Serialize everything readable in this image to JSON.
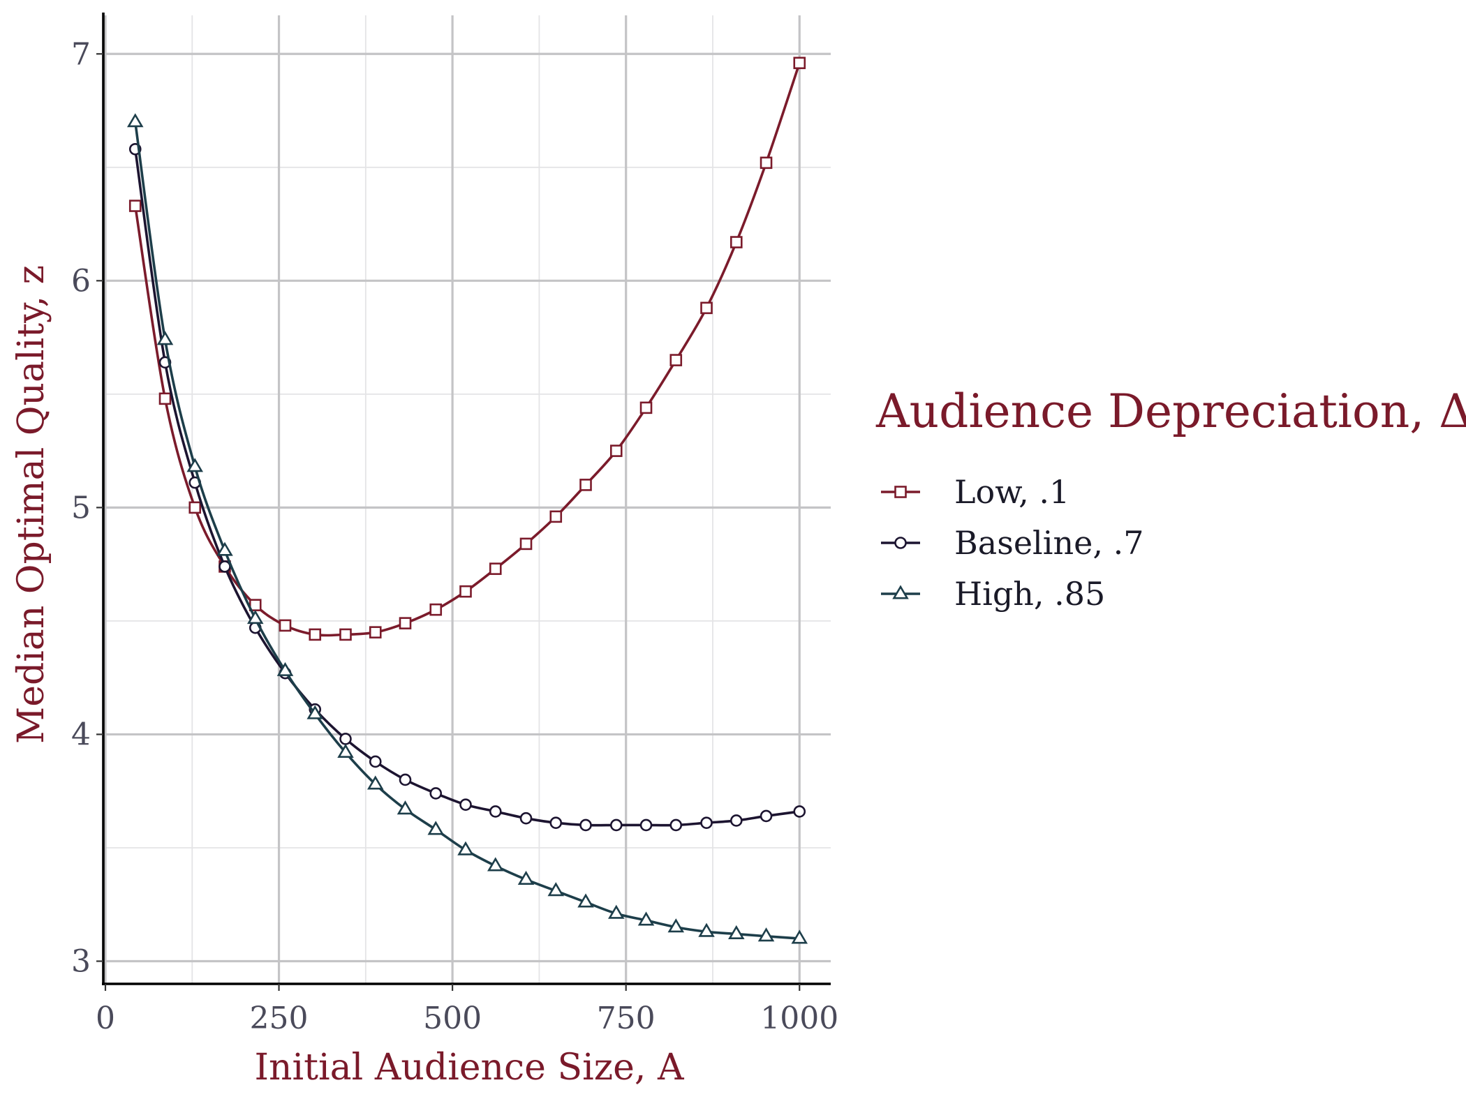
{
  "chart_data": {
    "type": "line",
    "title": "",
    "xlabel": "Initial Audience Size, A",
    "ylabel": "Median Optimal Quality, z",
    "xlim": [
      -3,
      1045
    ],
    "ylim": [
      2.9,
      7.17
    ],
    "x_major_ticks": [
      0,
      250,
      500,
      750,
      1000
    ],
    "x_tick_labels": [
      "0",
      "250",
      "500",
      "750",
      "1000"
    ],
    "x_minor_ticks": [
      125,
      375,
      625,
      875
    ],
    "y_major_ticks": [
      3,
      4,
      5,
      6,
      7
    ],
    "y_tick_labels": [
      "3",
      "4",
      "5",
      "6",
      "7"
    ],
    "y_minor_ticks": [
      3.5,
      4.5,
      5.5,
      6.5
    ],
    "grid": true,
    "legend_title": "Audience Depreciation, Δ",
    "legend_position": "right",
    "series": [
      {
        "name": "Low, .1",
        "color": "#7b1b2b",
        "marker": "square",
        "x": [
          43,
          86,
          129,
          172,
          216,
          259,
          302,
          346,
          389,
          432,
          476,
          519,
          562,
          606,
          649,
          692,
          736,
          779,
          822,
          866,
          909,
          952,
          1000
        ],
        "y": [
          6.33,
          5.48,
          5.0,
          4.74,
          4.57,
          4.48,
          4.44,
          4.44,
          4.45,
          4.49,
          4.55,
          4.63,
          4.73,
          4.84,
          4.96,
          5.1,
          5.25,
          5.44,
          5.65,
          5.88,
          6.17,
          6.52,
          6.96
        ]
      },
      {
        "name": "Baseline, .7",
        "color": "#1c1430",
        "marker": "circle",
        "x": [
          43,
          86,
          129,
          172,
          216,
          259,
          302,
          346,
          389,
          432,
          476,
          519,
          562,
          606,
          649,
          692,
          736,
          779,
          822,
          866,
          909,
          952,
          1000
        ],
        "y": [
          6.58,
          5.64,
          5.11,
          4.74,
          4.47,
          4.27,
          4.11,
          3.98,
          3.88,
          3.8,
          3.74,
          3.69,
          3.66,
          3.63,
          3.61,
          3.6,
          3.6,
          3.6,
          3.6,
          3.61,
          3.62,
          3.64,
          3.66
        ]
      },
      {
        "name": "High, .85",
        "color": "#1d3e4a",
        "marker": "triangle",
        "x": [
          43,
          86,
          129,
          172,
          216,
          259,
          302,
          346,
          389,
          432,
          476,
          519,
          562,
          606,
          649,
          692,
          736,
          779,
          822,
          866,
          909,
          952,
          1000
        ],
        "y": [
          6.7,
          5.74,
          5.18,
          4.81,
          4.51,
          4.28,
          4.09,
          3.92,
          3.78,
          3.67,
          3.58,
          3.49,
          3.42,
          3.36,
          3.31,
          3.26,
          3.21,
          3.18,
          3.15,
          3.13,
          3.12,
          3.11,
          3.1
        ]
      }
    ]
  }
}
